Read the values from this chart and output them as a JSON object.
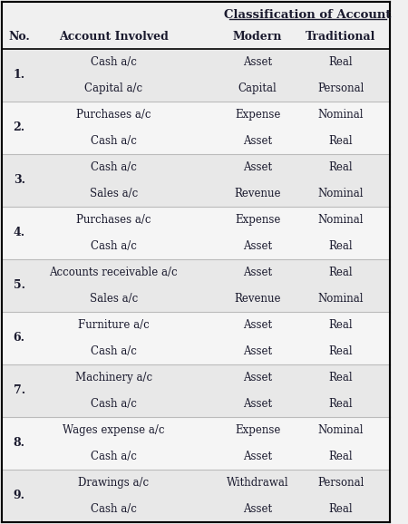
{
  "title": "Classification of Account",
  "col_headers": [
    "No.",
    "Account Involved",
    "Modern",
    "Traditional"
  ],
  "rows": [
    {
      "no": "1.",
      "accounts": [
        "Cash a/c",
        "Capital a/c"
      ],
      "modern": [
        "Asset",
        "Capital"
      ],
      "traditional": [
        "Real",
        "Personal"
      ]
    },
    {
      "no": "2.",
      "accounts": [
        "Purchases a/c",
        "Cash a/c"
      ],
      "modern": [
        "Expense",
        "Asset"
      ],
      "traditional": [
        "Nominal",
        "Real"
      ]
    },
    {
      "no": "3.",
      "accounts": [
        "Cash a/c",
        "Sales a/c"
      ],
      "modern": [
        "Asset",
        "Revenue"
      ],
      "traditional": [
        "Real",
        "Nominal"
      ]
    },
    {
      "no": "4.",
      "accounts": [
        "Purchases a/c",
        "Cash a/c"
      ],
      "modern": [
        "Expense",
        "Asset"
      ],
      "traditional": [
        "Nominal",
        "Real"
      ]
    },
    {
      "no": "5.",
      "accounts": [
        "Accounts receivable a/c",
        "Sales a/c"
      ],
      "modern": [
        "Asset",
        "Revenue"
      ],
      "traditional": [
        "Real",
        "Nominal"
      ]
    },
    {
      "no": "6.",
      "accounts": [
        "Furniture a/c",
        "Cash a/c"
      ],
      "modern": [
        "Asset",
        "Asset"
      ],
      "traditional": [
        "Real",
        "Real"
      ]
    },
    {
      "no": "7.",
      "accounts": [
        "Machinery a/c",
        "Cash a/c"
      ],
      "modern": [
        "Asset",
        "Asset"
      ],
      "traditional": [
        "Real",
        "Real"
      ]
    },
    {
      "no": "8.",
      "accounts": [
        "Wages expense a/c",
        "Cash a/c"
      ],
      "modern": [
        "Expense",
        "Asset"
      ],
      "traditional": [
        "Nominal",
        "Real"
      ]
    },
    {
      "no": "9.",
      "accounts": [
        "Drawings a/c",
        "Cash a/c"
      ],
      "modern": [
        "Withdrawal",
        "Asset"
      ],
      "traditional": [
        "Personal",
        "Real"
      ]
    }
  ],
  "bg_color": "#f0f0f0",
  "white_color": "#ffffff",
  "border_color": "#000000",
  "text_color": "#1a1a2e",
  "header_bg": "#ffffff",
  "row_bg_odd": "#e8e8e8",
  "row_bg_even": "#f5f5f5"
}
